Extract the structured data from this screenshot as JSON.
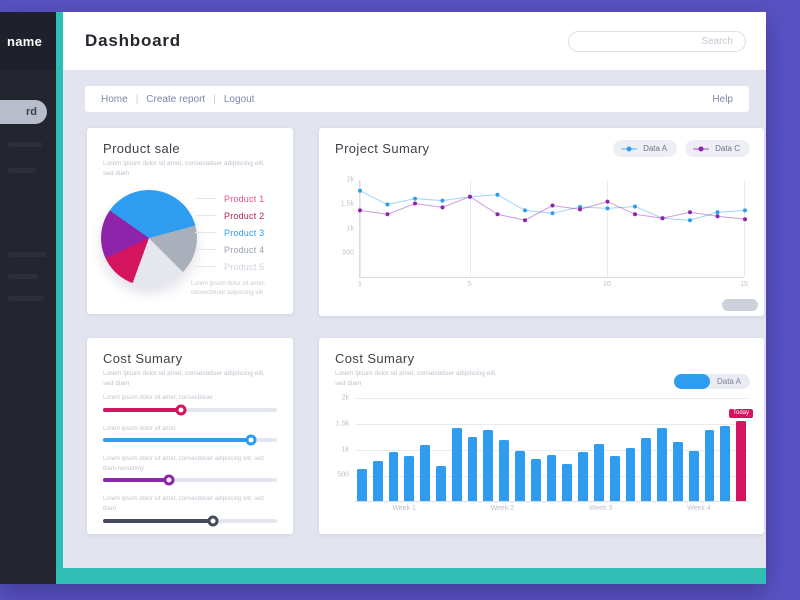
{
  "colors": {
    "bg": "#5a52c4",
    "teal": "#2fbdb4",
    "sidebar": "#23262f",
    "blue": "#2e9df0",
    "pink": "#d4145f",
    "purple": "#8d24aa",
    "dark": "#454b59"
  },
  "sidebar": {
    "name_label": "name",
    "active_label": "rd"
  },
  "header": {
    "title": "Dashboard",
    "search_placeholder": "Search"
  },
  "nav": {
    "items": [
      "Home",
      "Create report",
      "Logout"
    ],
    "separator": "|",
    "help": "Help"
  },
  "cards": {
    "product_sale": {
      "title": "Product sale",
      "subtitle": "Lorem ipsum dolor sit amet, consectetuer adipiscing elit, sed diam",
      "note": "Lorem ipsum dolor sit amet, consectetuer adipiscing elit"
    },
    "project_summary": {
      "title": "Project Sumary"
    },
    "cost_sliders": {
      "title": "Cost Sumary",
      "subtitle": "Lorem ipsum dolor sit amet, consectetuer adipiscing elit, sed diam"
    },
    "cost_bars": {
      "title": "Cost Sumary",
      "subtitle": "Lorem ipsum dolor sit amet, consectetuer adipiscing elit, sed diam"
    }
  },
  "sliders": [
    {
      "color": "#d4145f",
      "value": 45,
      "label": "Lorem ipsum dolor sit amet, consectetuer"
    },
    {
      "color": "#2e9df0",
      "value": 85,
      "label": "Lorem ipsum dolor sit amet"
    },
    {
      "color": "#8d24aa",
      "value": 38,
      "label": "Lorem ipsum dolor sit amet, consectetuer adipiscing elit, sed diam nonummy"
    },
    {
      "color": "#454b59",
      "value": 63,
      "label": "Lorem ipsum dolor sit amet, consectetuer adipiscing elit, sed diam"
    }
  ],
  "chart_data": [
    {
      "type": "pie",
      "title": "Product sale",
      "start_deg": -55,
      "slices": [
        {
          "label": "Product 3",
          "color": "#2e9df0",
          "deg": 130
        },
        {
          "label": "Product 4",
          "color": "#a9afbb",
          "deg": 60
        },
        {
          "label": "Product 5",
          "color": "#e4e7ed",
          "deg": 65
        },
        {
          "label": "Product 1",
          "color": "#d4145f",
          "deg": 45
        },
        {
          "label": "Product 2",
          "color": "#8d24aa",
          "deg": 60
        }
      ],
      "legend": [
        {
          "label": "Product 1",
          "color": "#e94f8f"
        },
        {
          "label": "Product 2",
          "color": "#b31d5f"
        },
        {
          "label": "Product 3",
          "color": "#2e9df0"
        },
        {
          "label": "Product 4",
          "color": "#9aa1ae"
        },
        {
          "label": "Product 5",
          "color": "#cdd2dc"
        }
      ]
    },
    {
      "type": "line",
      "title": "Project Sumary",
      "x_range": [
        1,
        15
      ],
      "x_ticks": [
        1,
        5,
        10,
        15
      ],
      "y_max": 2000,
      "y_ticks": [
        {
          "label": "2k",
          "value": 2000
        },
        {
          "label": "1.5k",
          "value": 1500
        },
        {
          "label": "1k",
          "value": 1000
        },
        {
          "label": "500",
          "value": 500
        }
      ],
      "series": [
        {
          "name": "Data A",
          "color": "#2e9df0",
          "values": [
            1780,
            1500,
            1620,
            1580,
            1660,
            1700,
            1380,
            1320,
            1450,
            1420,
            1460,
            1220,
            1180,
            1340,
            1380
          ]
        },
        {
          "name": "Data C",
          "color": "#8d24aa",
          "values": [
            1380,
            1300,
            1520,
            1440,
            1660,
            1300,
            1180,
            1480,
            1400,
            1560,
            1300,
            1220,
            1340,
            1260,
            1200
          ]
        }
      ],
      "legend_position": "top-right"
    },
    {
      "type": "bar",
      "title": "Cost Sumary",
      "legend": "Data A",
      "y_max": 2000,
      "y_ticks": [
        {
          "label": "2k",
          "value": 2000
        },
        {
          "label": "1.5k",
          "value": 1500
        },
        {
          "label": "1k",
          "value": 1000
        },
        {
          "label": "500",
          "value": 500
        }
      ],
      "week_labels": [
        "Week 1",
        "Week 2",
        "Week 3",
        "Week 4"
      ],
      "values": [
        620,
        780,
        950,
        880,
        1080,
        680,
        1420,
        1250,
        1380,
        1180,
        980,
        820,
        900,
        720,
        960,
        1100,
        880,
        1020,
        1220,
        1420,
        1150,
        980,
        1380,
        1450,
        1560
      ],
      "bar_color": "#2e9df0",
      "highlight_index": 24,
      "highlight_color": "#d4145f",
      "highlight_label": "Today"
    }
  ]
}
